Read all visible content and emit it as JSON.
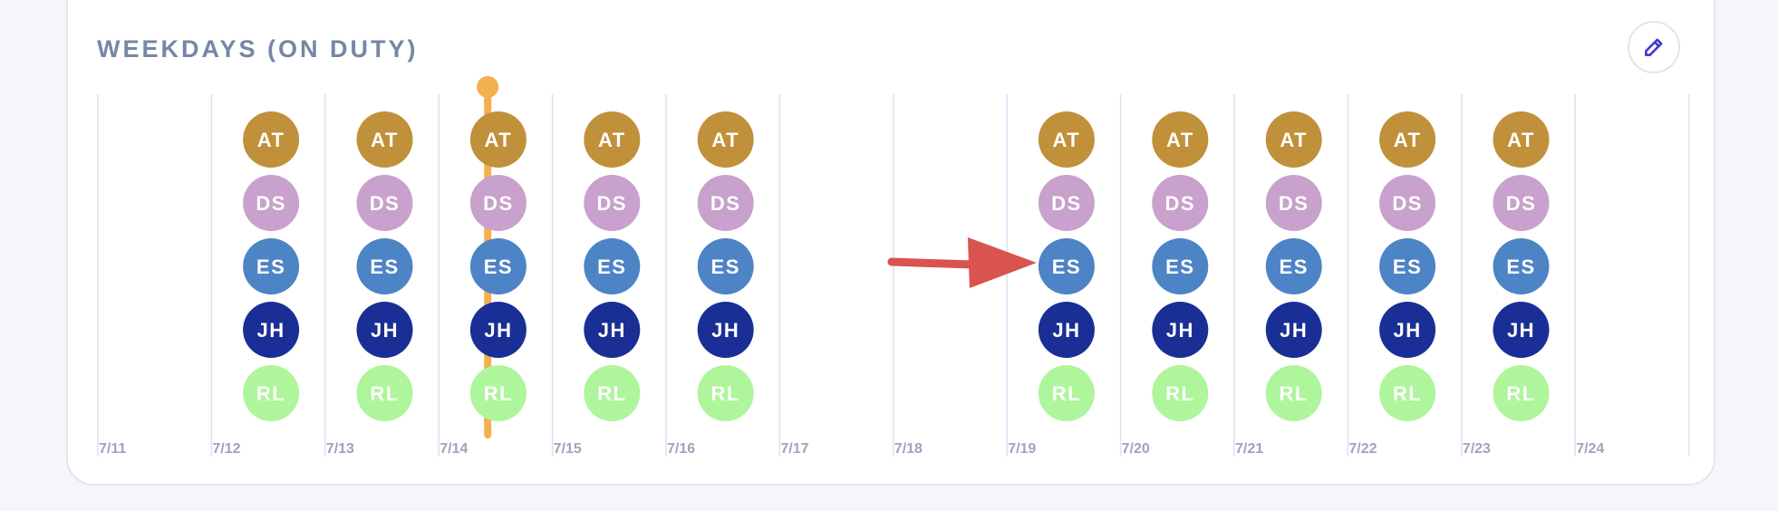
{
  "section": {
    "title": "WEEKDAYS (ON DUTY)",
    "edit_icon": "pencil-icon"
  },
  "colors": {
    "AT": "#c0913a",
    "DS": "#c8a1cc",
    "ES": "#4d84c6",
    "JH": "#1a2f95",
    "RL": "#aef59c",
    "today_marker": "#f2b04f",
    "grid_line": "#dde1f3",
    "annotation_arrow": "#d9534f"
  },
  "staff_order": [
    "AT",
    "DS",
    "ES",
    "JH",
    "RL"
  ],
  "days": [
    {
      "label": "7/11",
      "on_duty": []
    },
    {
      "label": "7/12",
      "on_duty": [
        "AT",
        "DS",
        "ES",
        "JH",
        "RL"
      ]
    },
    {
      "label": "7/13",
      "on_duty": [
        "AT",
        "DS",
        "ES",
        "JH",
        "RL"
      ]
    },
    {
      "label": "7/14",
      "on_duty": [
        "AT",
        "DS",
        "ES",
        "JH",
        "RL"
      ],
      "is_today": true
    },
    {
      "label": "7/15",
      "on_duty": [
        "AT",
        "DS",
        "ES",
        "JH",
        "RL"
      ]
    },
    {
      "label": "7/16",
      "on_duty": [
        "AT",
        "DS",
        "ES",
        "JH",
        "RL"
      ]
    },
    {
      "label": "7/17",
      "on_duty": []
    },
    {
      "label": "7/18",
      "on_duty": []
    },
    {
      "label": "7/19",
      "on_duty": [
        "AT",
        "DS",
        "ES",
        "JH",
        "RL"
      ]
    },
    {
      "label": "7/20",
      "on_duty": [
        "AT",
        "DS",
        "ES",
        "JH",
        "RL"
      ]
    },
    {
      "label": "7/21",
      "on_duty": [
        "AT",
        "DS",
        "ES",
        "JH",
        "RL"
      ]
    },
    {
      "label": "7/22",
      "on_duty": [
        "AT",
        "DS",
        "ES",
        "JH",
        "RL"
      ]
    },
    {
      "label": "7/23",
      "on_duty": [
        "AT",
        "DS",
        "ES",
        "JH",
        "RL"
      ]
    },
    {
      "label": "7/24",
      "on_duty": []
    }
  ],
  "annotation": {
    "type": "arrow",
    "points_to_day": "7/19",
    "points_to_staff": "ES"
  }
}
